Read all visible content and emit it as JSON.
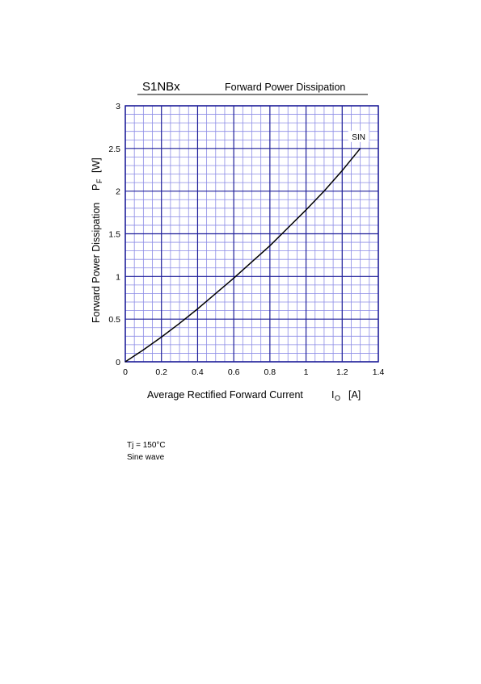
{
  "chart_data": {
    "type": "line",
    "title": "S1NBx",
    "subtitle": "Forward Power Dissipation",
    "x_label": {
      "text": "Average Rectified Forward Current",
      "symbol": "I",
      "subscript": "O",
      "unit": "[A]"
    },
    "y_label": {
      "text": "Forward Power Dissipation",
      "symbol": "P",
      "subscript": "F",
      "unit": "[W]"
    },
    "x": [
      0,
      0.1,
      0.2,
      0.3,
      0.4,
      0.5,
      0.6,
      0.7,
      0.8,
      0.9,
      1.0,
      1.1,
      1.2,
      1.3
    ],
    "series": [
      {
        "name": "SIN",
        "color": "#000000",
        "values": [
          0,
          0.14,
          0.29,
          0.45,
          0.62,
          0.8,
          0.98,
          1.17,
          1.36,
          1.57,
          1.78,
          2.0,
          2.24,
          2.5
        ]
      }
    ],
    "xlim": [
      0,
      1.4
    ],
    "ylim": [
      0,
      3
    ],
    "xticks": [
      0,
      0.2,
      0.4,
      0.6,
      0.8,
      1,
      1.2,
      1.4
    ],
    "yticks": [
      0,
      0.5,
      1,
      1.5,
      2,
      2.5,
      3
    ],
    "grid": true,
    "minor_grid": {
      "x": 4,
      "y": 5
    },
    "notes": [
      "Tj = 150°C",
      "Sine wave"
    ]
  }
}
